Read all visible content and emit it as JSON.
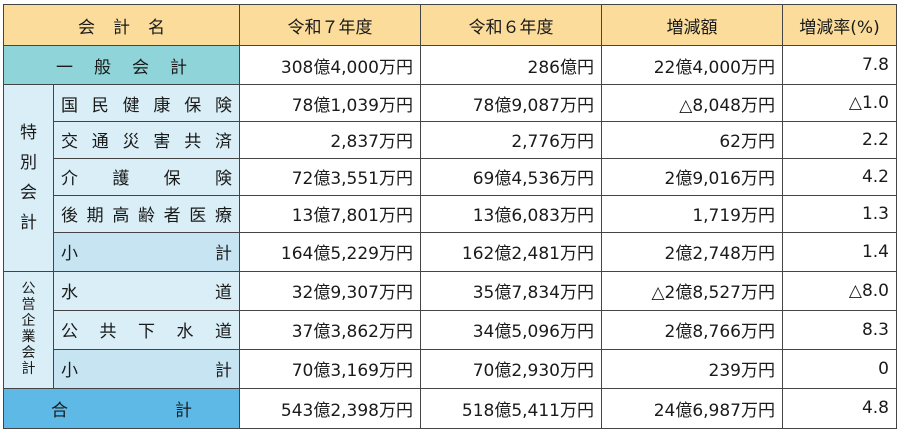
{
  "header": {
    "name": "会計名",
    "fy7": "令和７年度",
    "fy6": "令和６年度",
    "diff": "増減額",
    "rate": "増減率(%)"
  },
  "general": {
    "name": "一般会計",
    "fy7": "308億4,000万円",
    "fy6": "286億円",
    "diff": "22億4,000万円",
    "rate": "7.8"
  },
  "special": {
    "label": "特別会計",
    "rows": [
      {
        "name": "国民健康保険",
        "fy7": "78億1,039万円",
        "fy6": "78億9,087万円",
        "diff": "△8,048万円",
        "rate": "△1.0"
      },
      {
        "name": "交通災害共済",
        "fy7": "2,837万円",
        "fy6": "2,776万円",
        "diff": "62万円",
        "rate": "2.2"
      },
      {
        "name": "介護保険",
        "fy7": "72億3,551万円",
        "fy6": "69億4,536万円",
        "diff": "2億9,016万円",
        "rate": "4.2"
      },
      {
        "name": "後期高齢者医療",
        "fy7": "13億7,801万円",
        "fy6": "13億6,083万円",
        "diff": "1,719万円",
        "rate": "1.3"
      }
    ],
    "subtotal": {
      "name": "小計",
      "fy7": "164億5,229万円",
      "fy6": "162億2,481万円",
      "diff": "2億2,748万円",
      "rate": "1.4"
    }
  },
  "public": {
    "label": "公営企業会計",
    "rows": [
      {
        "name": "水道",
        "fy7": "32億9,307万円",
        "fy6": "35億7,834万円",
        "diff": "△2億8,527万円",
        "rate": "△8.0"
      },
      {
        "name": "公共下水道",
        "fy7": "37億3,862万円",
        "fy6": "34億5,096万円",
        "diff": "2億8,766万円",
        "rate": "8.3"
      }
    ],
    "subtotal": {
      "name": "小計",
      "fy7": "70億3,169万円",
      "fy6": "70億2,930万円",
      "diff": "239万円",
      "rate": "0"
    }
  },
  "total": {
    "name": "合計",
    "fy7": "543億2,398万円",
    "fy6": "518億5,411万円",
    "diff": "24億6,987万円",
    "rate": "4.8"
  },
  "colors": {
    "header": "#fbdc9a",
    "general": "#8fd4d9",
    "category": "#d9eef6",
    "subtotal": "#c7e4f2",
    "total": "#5eb9e6"
  }
}
